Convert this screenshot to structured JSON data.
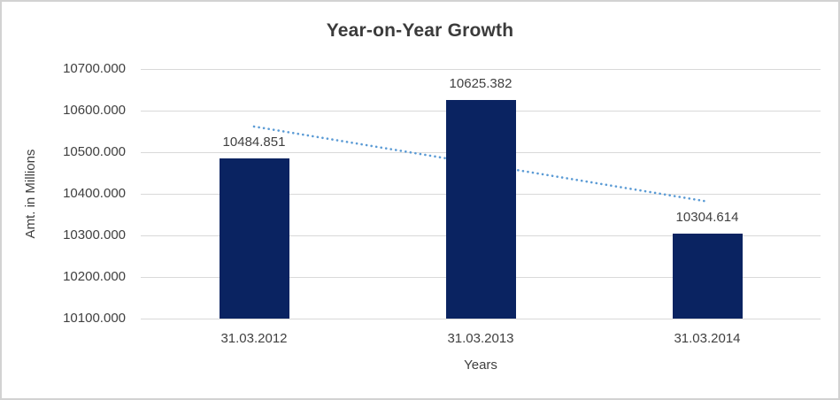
{
  "frame": {
    "background": "#ffffff",
    "border_color": "#d2d2d2"
  },
  "chart_data": {
    "type": "bar",
    "title": "Year-on-Year Growth",
    "xlabel": "Years",
    "ylabel": "Amt. in Millions",
    "categories": [
      "31.03.2012",
      "31.03.2013",
      "31.03.2014"
    ],
    "values": [
      10484.851,
      10625.382,
      10304.614
    ],
    "data_labels": [
      "10484.851",
      "10625.382",
      "10304.614"
    ],
    "ylim": [
      10100,
      10700
    ],
    "y_ticks": [
      "10700.000",
      "10600.000",
      "10500.000",
      "10400.000",
      "10300.000",
      "10200.000",
      "10100.000"
    ],
    "grid": true,
    "legend": "none",
    "bar_color": "#0a2361",
    "gridline_color": "#d9d9d9",
    "text_color": "#404040",
    "title_color": "#3b3b3b",
    "trendline": {
      "type": "linear",
      "style": "dotted",
      "color": "#5b9bd5",
      "start_value": 10561.734,
      "end_value": 10381.497
    }
  }
}
